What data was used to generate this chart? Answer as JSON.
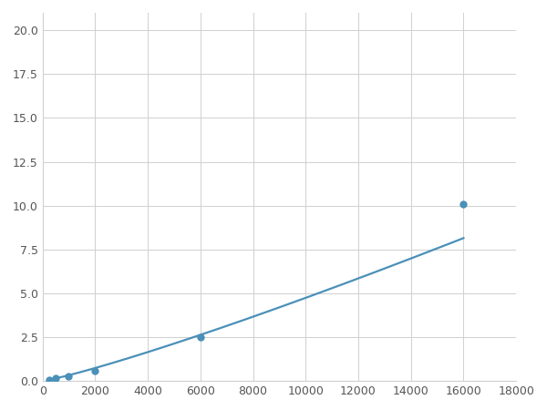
{
  "x": [
    250,
    500,
    1000,
    2000,
    6000,
    16000
  ],
  "y": [
    0.08,
    0.18,
    0.25,
    0.6,
    2.5,
    10.1
  ],
  "line_color": "#4a90b8",
  "marker_color": "#4a90b8",
  "marker_size": 5,
  "line_width": 1.6,
  "xlim": [
    0,
    18000
  ],
  "ylim": [
    0,
    21
  ],
  "xticks": [
    0,
    2000,
    4000,
    6000,
    8000,
    10000,
    12000,
    14000,
    16000,
    18000
  ],
  "yticks": [
    0.0,
    2.5,
    5.0,
    7.5,
    10.0,
    12.5,
    15.0,
    17.5,
    20.0
  ],
  "grid_color": "#d0d0d0",
  "background_color": "#ffffff"
}
